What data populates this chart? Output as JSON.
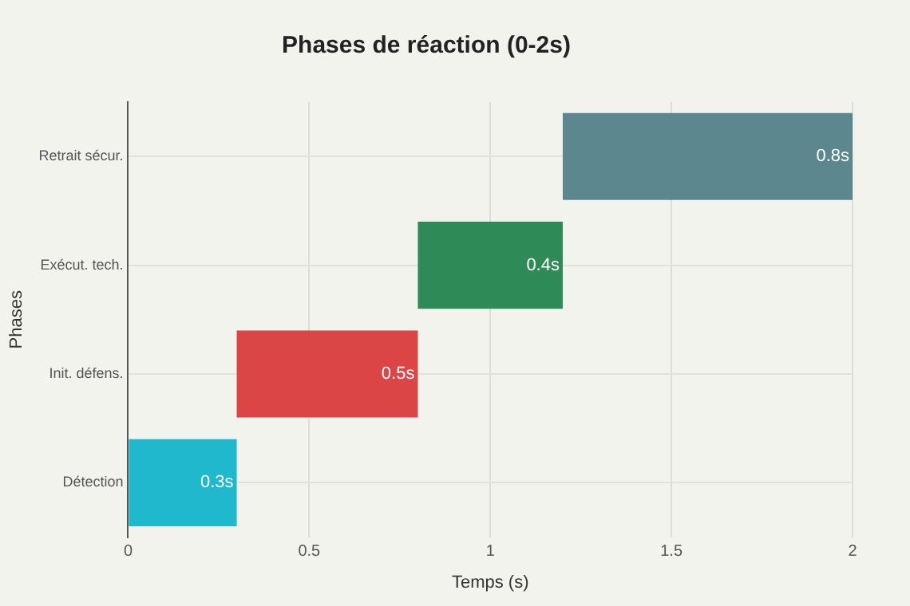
{
  "chart_data": {
    "type": "bar",
    "orientation": "horizontal",
    "title": "Phases de réaction (0-2s)",
    "xlabel": "Temps (s)",
    "ylabel": "Phases",
    "categories": [
      "Retrait sécur.",
      "Exécut. tech.",
      "Init. défens.",
      "Détection"
    ],
    "values": [
      0.8,
      0.4,
      0.5,
      0.3
    ],
    "base": [
      1.2,
      0.8,
      0.3,
      0
    ],
    "colors": [
      "#5d878f",
      "#2e8b57",
      "#db4545",
      "#1fb8cd"
    ],
    "value_labels": [
      "0.8s",
      "0.4s",
      "0.5s",
      "0.3s"
    ],
    "xlim": [
      0,
      2
    ],
    "xticks": [
      0,
      0.5,
      1,
      1.5,
      2
    ],
    "grid": true,
    "legend": false
  }
}
